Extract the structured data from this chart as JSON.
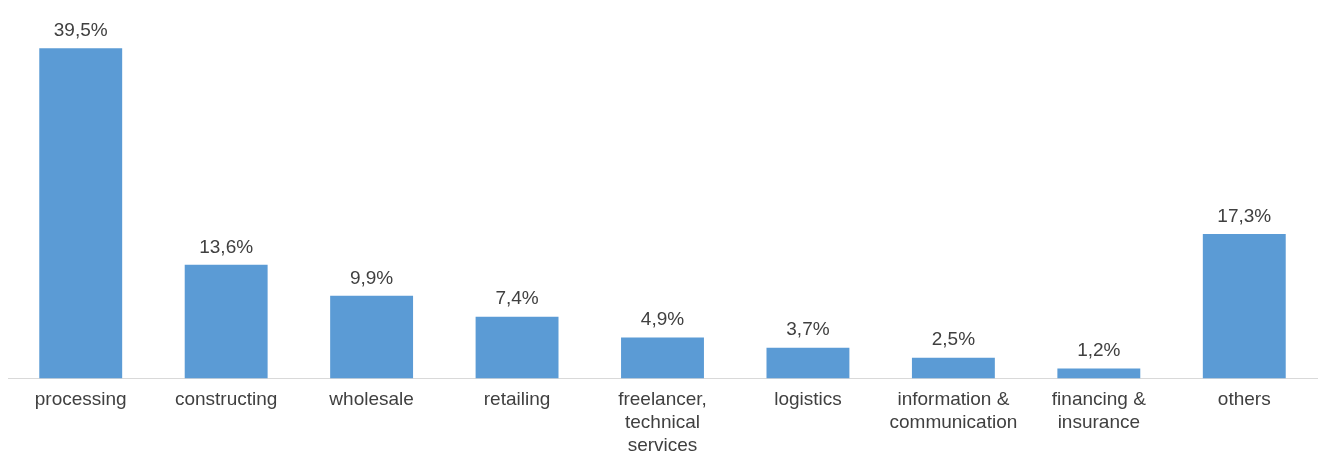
{
  "chart_data": {
    "type": "bar",
    "categories": [
      "processing",
      "constructing",
      "wholesale",
      "retailing",
      "freelancer, technical services",
      "logistics",
      "information & communication",
      "financing & insurance",
      "others"
    ],
    "values": [
      39.5,
      13.6,
      9.9,
      7.4,
      4.9,
      3.7,
      2.5,
      1.2,
      17.3
    ],
    "value_labels": [
      "39,5%",
      "13,6%",
      "9,9%",
      "7,4%",
      "4,9%",
      "3,7%",
      "2,5%",
      "1,2%",
      "17,3%"
    ],
    "color": "#5b9bd5"
  }
}
